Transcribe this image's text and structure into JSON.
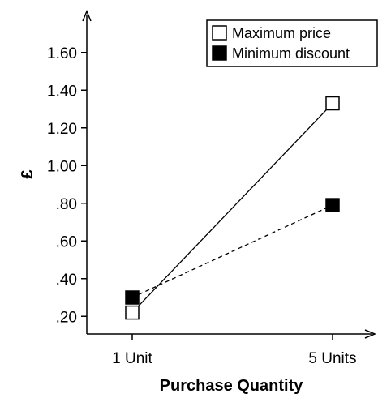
{
  "chart_data": {
    "type": "line",
    "title": "",
    "xlabel": "Purchase Quantity",
    "ylabel": "£",
    "categories": [
      "1 Unit",
      "5 Units"
    ],
    "ylim": [
      0.1,
      1.7
    ],
    "yticks": [
      0.2,
      0.4,
      0.6,
      0.8,
      1.0,
      1.2,
      1.4,
      1.6
    ],
    "ytick_labels": [
      ".20",
      ".40",
      ".60",
      ".80",
      "1.00",
      "1.20",
      "1.40",
      "1.60"
    ],
    "grid": false,
    "legend_position": "top-right",
    "series": [
      {
        "name": "Maximum price",
        "values": [
          0.22,
          1.33
        ],
        "marker": "open-square",
        "line": "solid",
        "color": "#000000"
      },
      {
        "name": "Minimum discount",
        "values": [
          0.3,
          0.79
        ],
        "marker": "filled-square",
        "line": "dashed",
        "color": "#000000"
      }
    ]
  }
}
